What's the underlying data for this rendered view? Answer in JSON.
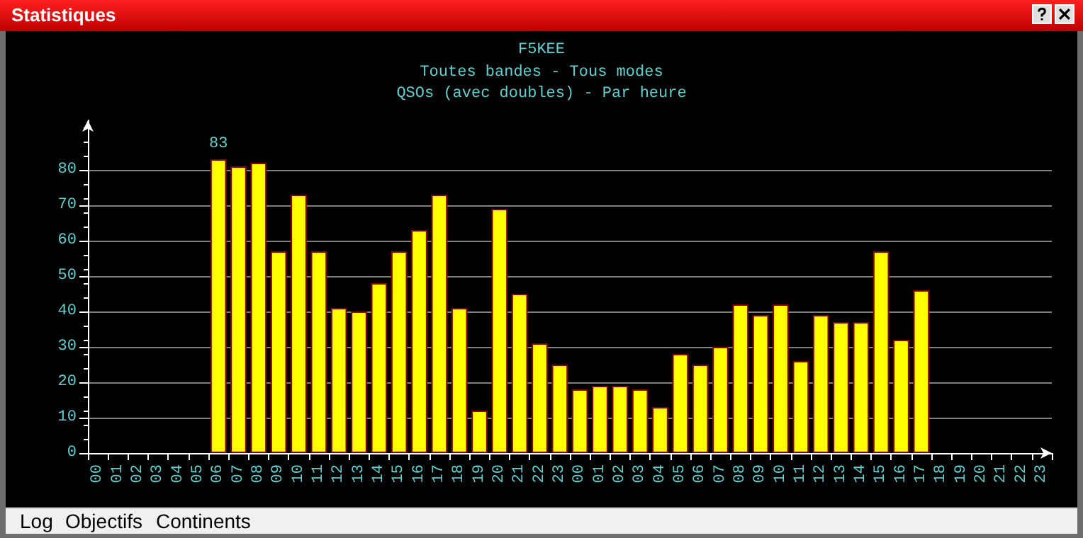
{
  "chart_data": {
    "type": "bar",
    "title": "F5KEE",
    "subtitle": "Toutes bandes - Tous modes\nQSOs (avec doubles) - Par heure",
    "annotations": [
      "Statistiques",
      "Log",
      "Objectifs",
      "Continents"
    ],
    "categories": [
      "00",
      "01",
      "02",
      "03",
      "04",
      "05",
      "06",
      "07",
      "08",
      "09",
      "10",
      "11",
      "12",
      "13",
      "14",
      "15",
      "16",
      "17",
      "18",
      "19",
      "20",
      "21",
      "22",
      "23",
      "00",
      "01",
      "02",
      "03",
      "04",
      "05",
      "06",
      "07",
      "08",
      "09",
      "10",
      "11",
      "12",
      "13",
      "14",
      "15",
      "16",
      "17",
      "18",
      "19",
      "20",
      "21",
      "22",
      "23"
    ],
    "values": [
      null,
      null,
      null,
      null,
      null,
      null,
      83,
      81,
      82,
      57,
      73,
      57,
      41,
      40,
      48,
      57,
      63,
      73,
      41,
      12,
      69,
      45,
      31,
      25,
      18,
      19,
      19,
      18,
      13,
      28,
      25,
      30,
      42,
      39,
      42,
      26,
      39,
      37,
      37,
      57,
      32,
      46,
      null,
      null,
      null,
      null,
      null,
      null
    ],
    "value_labels": [
      null,
      null,
      null,
      null,
      null,
      null,
      "83",
      null,
      null,
      null,
      null,
      null,
      null,
      null,
      null,
      null,
      null,
      null,
      null,
      null,
      null,
      null,
      null,
      null,
      null,
      null,
      null,
      null,
      null,
      null,
      null,
      null,
      null,
      null,
      null,
      null,
      null,
      null,
      null,
      null,
      null,
      null,
      null,
      null,
      null,
      null,
      null,
      null
    ],
    "color": "#ffff00",
    "ylim": [
      0,
      94
    ],
    "yticks": [
      0,
      10,
      20,
      30,
      40,
      50,
      60,
      70,
      80
    ],
    "grid": "y"
  }
}
